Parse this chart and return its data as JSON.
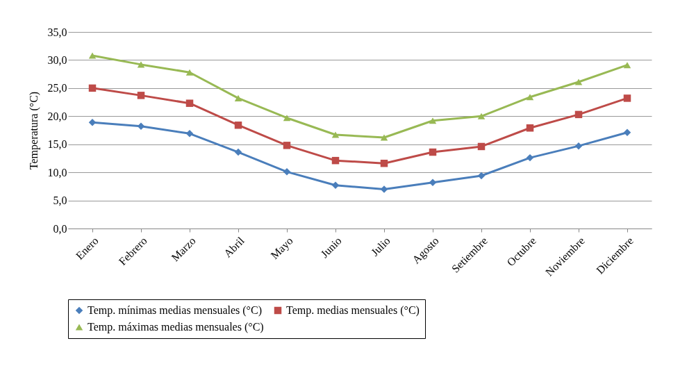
{
  "chart_data": {
    "type": "line",
    "ylabel": "Temperatura (°C)",
    "categories": [
      "Enero",
      "Febrero",
      "Marzo",
      "Abril",
      "Mayo",
      "Junio",
      "Julio",
      "Agosto",
      "Setiembre",
      "Octubre",
      "Noviembre",
      "Diciembre"
    ],
    "series": [
      {
        "name": "Temp. mínimas medias mensuales (°C)",
        "color": "#4a7ebb",
        "marker": "diamond",
        "values": [
          18.9,
          18.2,
          16.9,
          13.6,
          10.1,
          7.7,
          7.0,
          8.2,
          9.4,
          12.6,
          14.7,
          17.1
        ]
      },
      {
        "name": "Temp. medias mensuales (°C)",
        "color": "#be4b48",
        "marker": "square",
        "values": [
          25.0,
          23.7,
          22.3,
          18.4,
          14.8,
          12.1,
          11.6,
          13.6,
          14.6,
          17.9,
          20.3,
          23.2
        ]
      },
      {
        "name": "Temp. máximas medias mensuales (°C)",
        "color": "#98b954",
        "marker": "triangle",
        "values": [
          30.8,
          29.2,
          27.8,
          23.2,
          19.7,
          16.7,
          16.2,
          19.2,
          20.0,
          23.4,
          26.1,
          29.1
        ]
      }
    ],
    "ylim": [
      0,
      35
    ],
    "yticks": [
      {
        "value": 0,
        "label": "0,0"
      },
      {
        "value": 5,
        "label": "5,0"
      },
      {
        "value": 10,
        "label": "10,0"
      },
      {
        "value": 15,
        "label": "15,0"
      },
      {
        "value": 20,
        "label": "20,0"
      },
      {
        "value": 25,
        "label": "25,0"
      },
      {
        "value": 30,
        "label": "30,0"
      },
      {
        "value": 35,
        "label": "35,0"
      }
    ],
    "grid": "y",
    "legend": "bottom"
  }
}
